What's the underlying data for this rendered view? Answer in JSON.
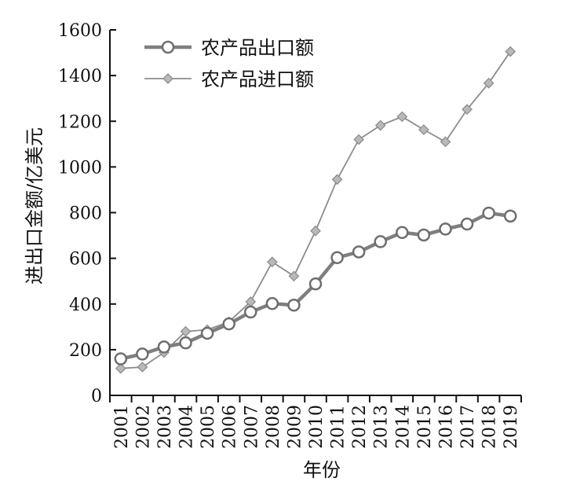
{
  "chart_data": {
    "type": "line",
    "x": [
      "2001",
      "2002",
      "2003",
      "2004",
      "2005",
      "2006",
      "2007",
      "2008",
      "2009",
      "2010",
      "2011",
      "2012",
      "2013",
      "2014",
      "2015",
      "2016",
      "2017",
      "2018",
      "2019"
    ],
    "series": [
      {
        "name": "农产品出口额",
        "marker": "circle",
        "color": "#7f7f7f",
        "values": [
          160,
          181,
          212,
          230,
          272,
          313,
          365,
          402,
          395,
          488,
          603,
          628,
          673,
          713,
          702,
          728,
          750,
          798,
          785
        ]
      },
      {
        "name": "农产品进口额",
        "marker": "diamond",
        "color": "#8c8c8c",
        "values": [
          118,
          124,
          188,
          280,
          287,
          322,
          410,
          584,
          522,
          720,
          945,
          1120,
          1182,
          1220,
          1163,
          1110,
          1252,
          1367,
          1505
        ]
      }
    ],
    "xlabel": "年份",
    "ylabel": "进出口金额/亿美元",
    "ylim": [
      0,
      1600
    ],
    "yticks": [
      0,
      200,
      400,
      600,
      800,
      1000,
      1200,
      1400,
      1600
    ],
    "grid": false,
    "legend": "top-left"
  }
}
